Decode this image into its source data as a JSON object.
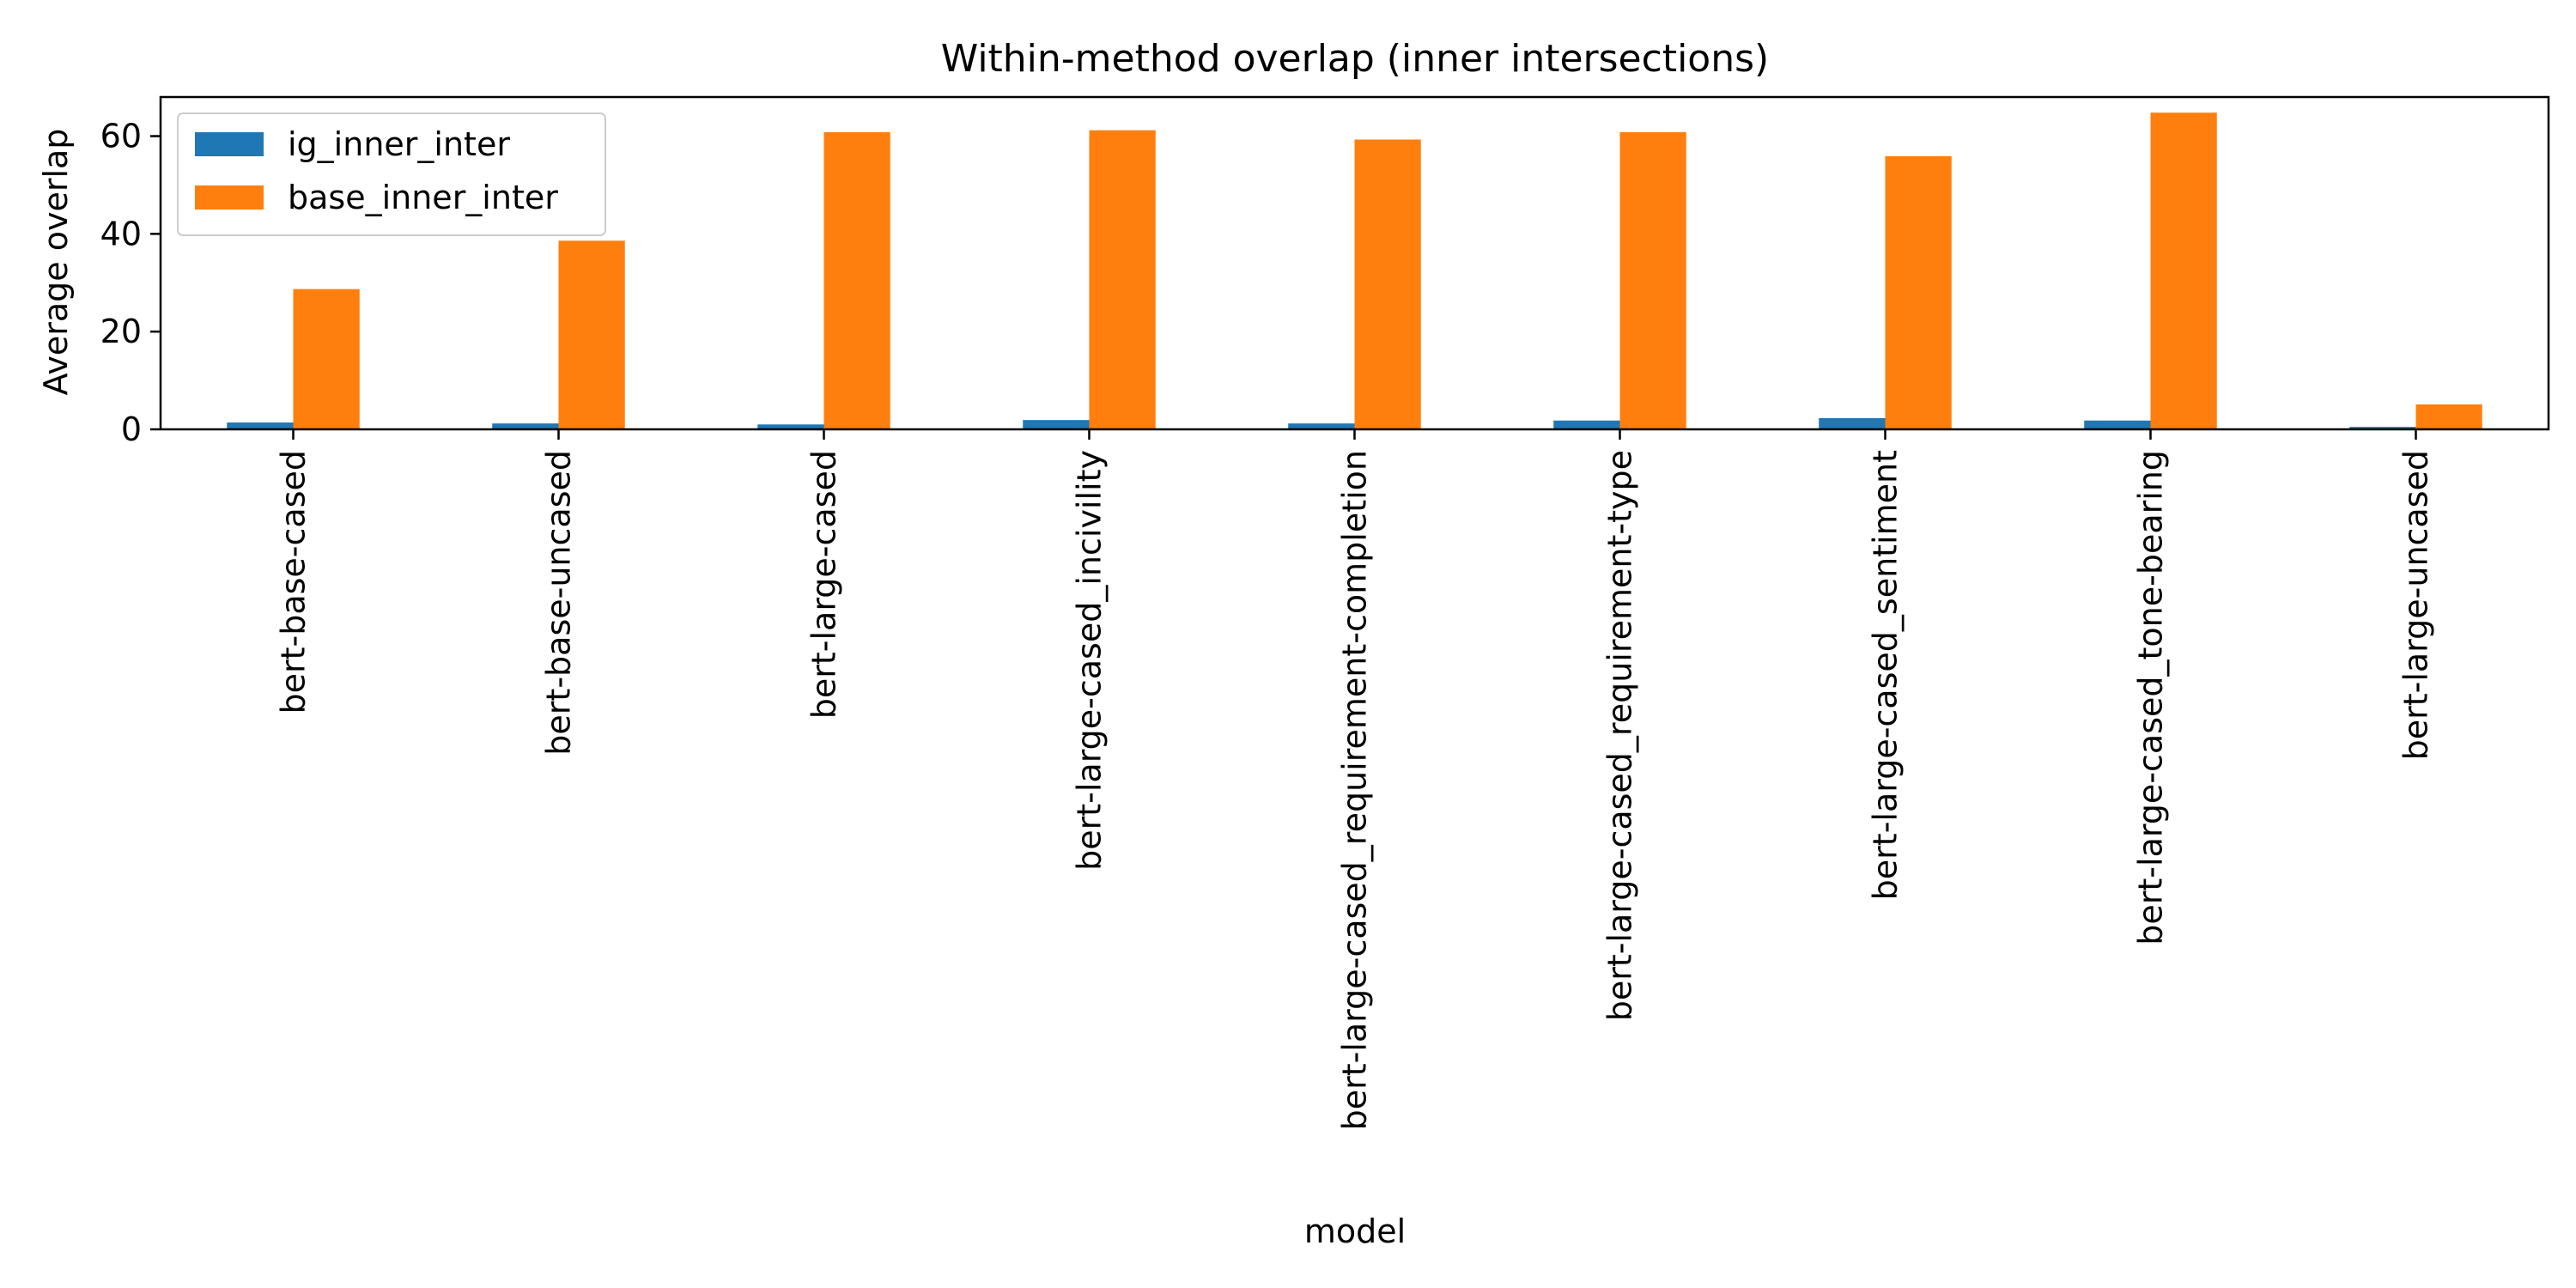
{
  "chart_data": {
    "type": "bar",
    "title": "Within-method overlap (inner intersections)",
    "xlabel": "model",
    "ylabel": "Average overlap",
    "ylim": [
      0,
      68
    ],
    "yticks": [
      0,
      20,
      40,
      60
    ],
    "grid": false,
    "legend_position": "top-left",
    "categories": [
      "bert-base-cased",
      "bert-base-uncased",
      "bert-large-cased",
      "bert-large-cased_incivility",
      "bert-large-cased_requirement-completion",
      "bert-large-cased_requirement-type",
      "bert-large-cased_sentiment",
      "bert-large-cased_tone-bearing",
      "bert-large-uncased"
    ],
    "series": [
      {
        "name": "ig_inner_inter",
        "color": "#1f77b4",
        "values": [
          1.4,
          1.2,
          1.0,
          1.9,
          1.2,
          1.8,
          2.3,
          1.8,
          0.5
        ]
      },
      {
        "name": "base_inner_inter",
        "color": "#ff7f0e",
        "values": [
          28.7,
          38.6,
          60.8,
          61.2,
          59.3,
          60.8,
          55.9,
          64.8,
          5.1
        ]
      }
    ]
  }
}
